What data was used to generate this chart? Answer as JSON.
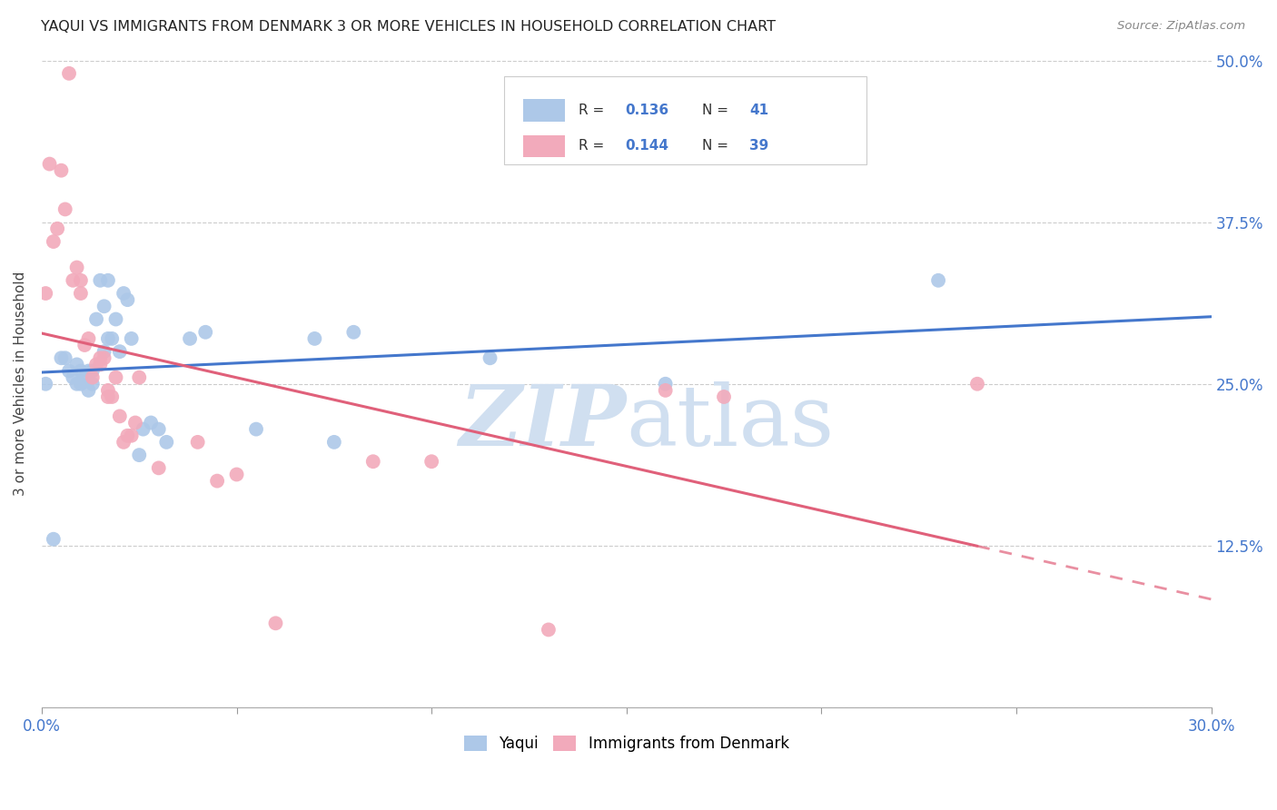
{
  "title": "YAQUI VS IMMIGRANTS FROM DENMARK 3 OR MORE VEHICLES IN HOUSEHOLD CORRELATION CHART",
  "source_text": "Source: ZipAtlas.com",
  "ylabel": "3 or more Vehicles in Household",
  "xlim": [
    0.0,
    0.3
  ],
  "ylim": [
    0.0,
    0.5
  ],
  "xticks": [
    0.0,
    0.05,
    0.1,
    0.15,
    0.2,
    0.25,
    0.3
  ],
  "xticklabels": [
    "0.0%",
    "",
    "",
    "",
    "",
    "",
    "30.0%"
  ],
  "yticks": [
    0.0,
    0.125,
    0.25,
    0.375,
    0.5
  ],
  "yticklabels": [
    "",
    "12.5%",
    "25.0%",
    "37.5%",
    "50.0%"
  ],
  "R_blue": 0.136,
  "N_blue": 41,
  "R_pink": 0.144,
  "N_pink": 39,
  "blue_color": "#adc8e8",
  "pink_color": "#f2aabb",
  "blue_line_color": "#4477cc",
  "pink_line_color": "#e0607a",
  "watermark_color": "#d0dff0",
  "blue_scatter_x": [
    0.001,
    0.003,
    0.005,
    0.006,
    0.007,
    0.008,
    0.009,
    0.009,
    0.01,
    0.01,
    0.011,
    0.012,
    0.012,
    0.013,
    0.013,
    0.014,
    0.015,
    0.016,
    0.016,
    0.017,
    0.017,
    0.018,
    0.019,
    0.02,
    0.021,
    0.022,
    0.023,
    0.025,
    0.026,
    0.028,
    0.03,
    0.032,
    0.038,
    0.042,
    0.055,
    0.07,
    0.075,
    0.08,
    0.115,
    0.16,
    0.23
  ],
  "blue_scatter_y": [
    0.25,
    0.13,
    0.27,
    0.27,
    0.26,
    0.255,
    0.25,
    0.265,
    0.25,
    0.26,
    0.255,
    0.245,
    0.26,
    0.25,
    0.26,
    0.3,
    0.33,
    0.31,
    0.275,
    0.33,
    0.285,
    0.285,
    0.3,
    0.275,
    0.32,
    0.315,
    0.285,
    0.195,
    0.215,
    0.22,
    0.215,
    0.205,
    0.285,
    0.29,
    0.215,
    0.285,
    0.205,
    0.29,
    0.27,
    0.25,
    0.33
  ],
  "pink_scatter_x": [
    0.001,
    0.002,
    0.003,
    0.004,
    0.005,
    0.006,
    0.007,
    0.008,
    0.009,
    0.01,
    0.01,
    0.011,
    0.012,
    0.013,
    0.014,
    0.015,
    0.015,
    0.016,
    0.017,
    0.017,
    0.018,
    0.019,
    0.02,
    0.021,
    0.022,
    0.023,
    0.024,
    0.025,
    0.04,
    0.045,
    0.06,
    0.085,
    0.1,
    0.13,
    0.16,
    0.175,
    0.24,
    0.03,
    0.05
  ],
  "pink_scatter_y": [
    0.32,
    0.42,
    0.36,
    0.37,
    0.415,
    0.385,
    0.49,
    0.33,
    0.34,
    0.32,
    0.33,
    0.28,
    0.285,
    0.255,
    0.265,
    0.27,
    0.265,
    0.27,
    0.24,
    0.245,
    0.24,
    0.255,
    0.225,
    0.205,
    0.21,
    0.21,
    0.22,
    0.255,
    0.205,
    0.175,
    0.065,
    0.19,
    0.19,
    0.06,
    0.245,
    0.24,
    0.25,
    0.185,
    0.18
  ]
}
